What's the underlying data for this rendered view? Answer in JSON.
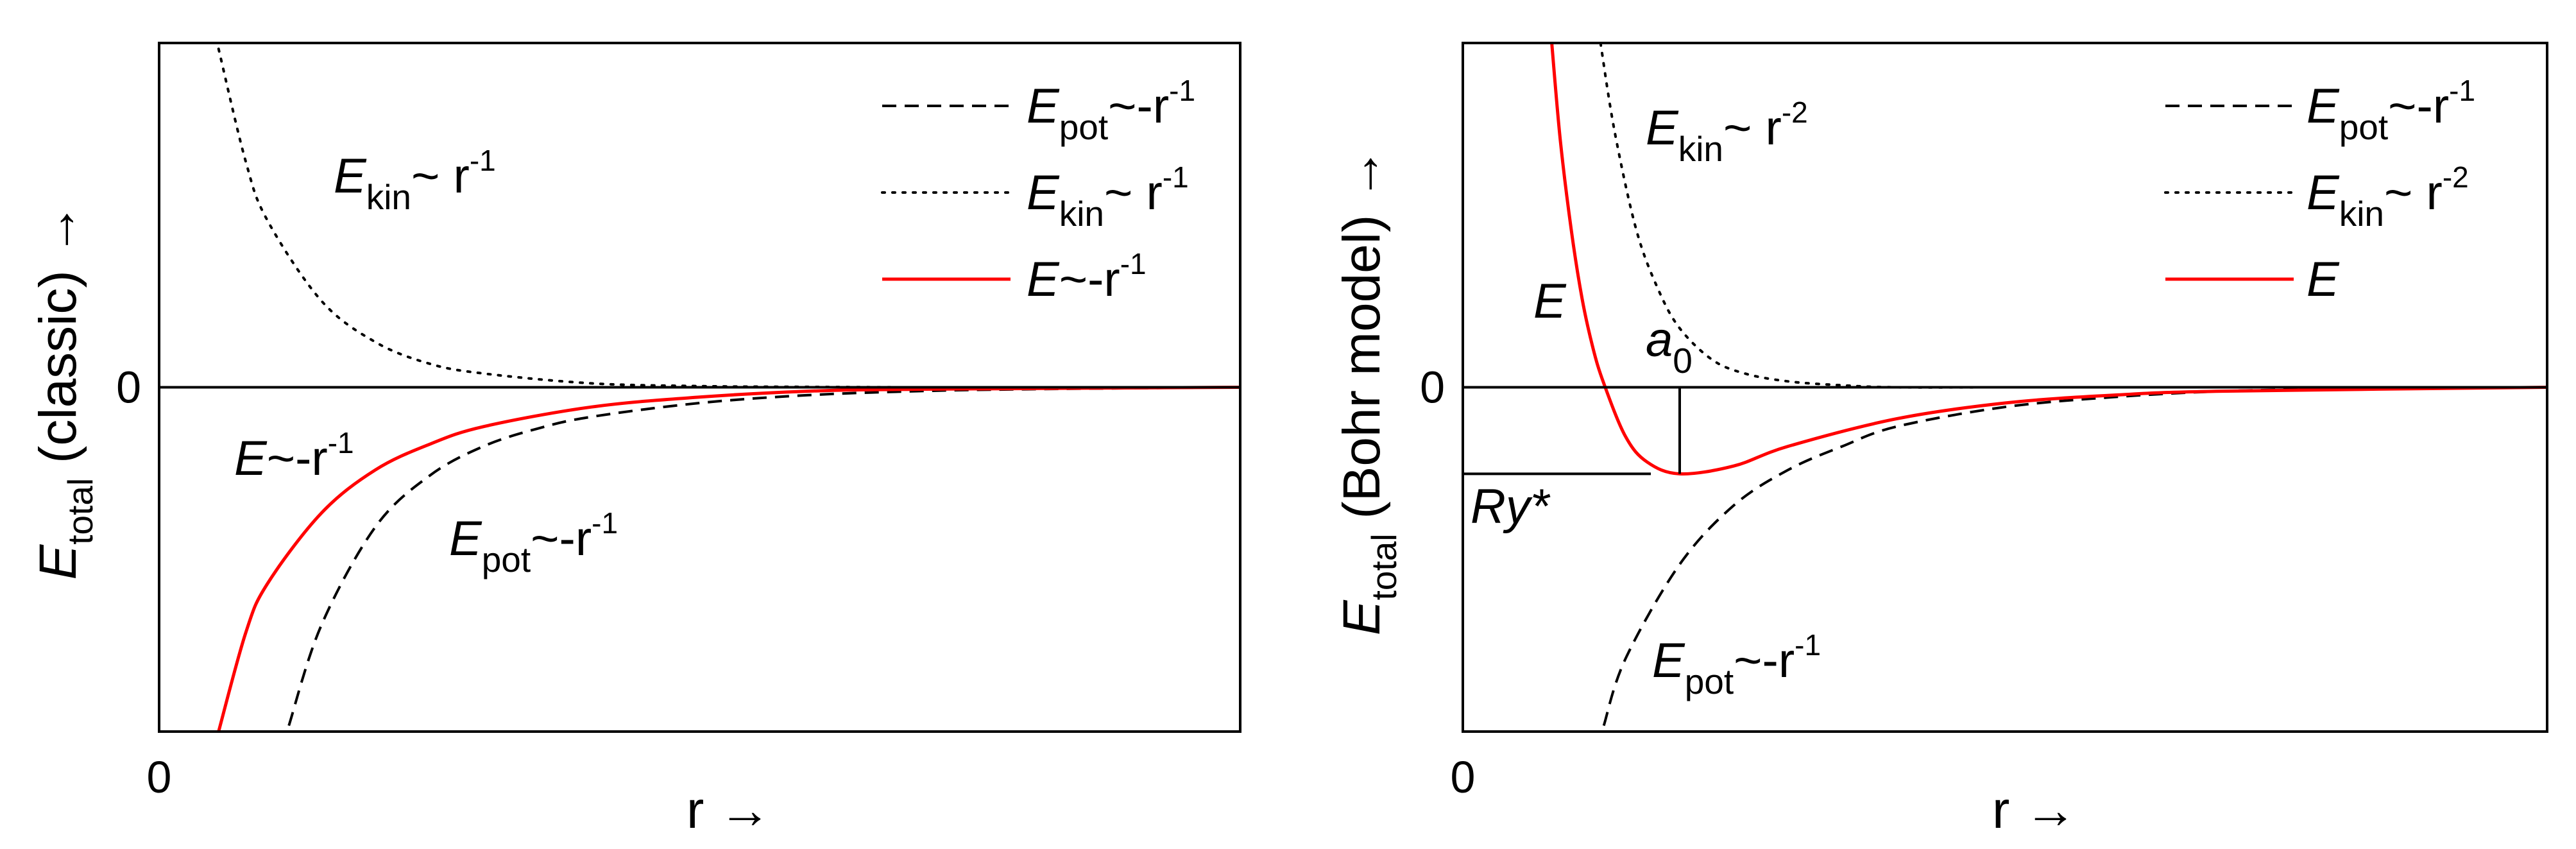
{
  "chart_data": [
    {
      "type": "line",
      "panel": "left",
      "xlabel": "r →",
      "ylabel": {
        "main": "E",
        "sub": "total",
        "rest": " (classic)  →"
      },
      "xticks": [
        "0"
      ],
      "yticks": [
        "0"
      ],
      "xlim": [
        0,
        10
      ],
      "ylim": [
        -1.75,
        1.75
      ],
      "grid": false,
      "legend_placement": "top-right",
      "legend": [
        {
          "base": "E",
          "sub": "pot",
          "mid": "~-r",
          "sup": "-1",
          "style": "dashed",
          "color": "#000000"
        },
        {
          "base": "E",
          "sub": "kin",
          "mid": "~ r",
          "sup": "-1",
          "style": "dotted",
          "color": "#000000"
        },
        {
          "base": "E",
          "sub": "",
          "mid": "~-r",
          "sup": "-1",
          "style": "solid",
          "color": "#ff0000"
        }
      ],
      "annotations": [
        {
          "base": "E",
          "sub": "kin",
          "mid": "~ r",
          "sup": "-1"
        },
        {
          "base": "E",
          "sub": "",
          "mid": "~-r",
          "sup": "-1"
        },
        {
          "base": "E",
          "sub": "pot",
          "mid": "~-r",
          "sup": "-1"
        }
      ],
      "series": [
        {
          "id": "Epot",
          "style": "dashed",
          "color": "#000000",
          "x": [
            1.2,
            1.5,
            2.0,
            2.5,
            3.0,
            3.5,
            4.0,
            5.0,
            6.0,
            7.0,
            8.0,
            10.0
          ],
          "y": [
            -1.72,
            -1.21,
            -0.71,
            -0.45,
            -0.3,
            -0.21,
            -0.15,
            -0.08,
            -0.04,
            -0.02,
            -0.01,
            0.0
          ]
        },
        {
          "id": "Ekin",
          "style": "dotted",
          "color": "#000000",
          "x": [
            0.55,
            0.8,
            1.0,
            1.5,
            2.0,
            2.5,
            3.0,
            4.0,
            5.0,
            6.0,
            7.0,
            8.0
          ],
          "y": [
            1.72,
            1.15,
            0.85,
            0.44,
            0.23,
            0.12,
            0.07,
            0.02,
            0.006,
            0.002,
            0.0,
            0.0
          ]
        },
        {
          "id": "E",
          "style": "solid",
          "color": "#ff0000",
          "x": [
            0.55,
            0.8,
            1.0,
            1.5,
            2.0,
            2.5,
            3.0,
            4.0,
            5.0,
            6.0,
            7.0,
            10.0
          ],
          "y": [
            -1.75,
            -1.25,
            -1.0,
            -0.64,
            -0.42,
            -0.29,
            -0.2,
            -0.1,
            -0.05,
            -0.02,
            -0.01,
            0.0
          ]
        },
        {
          "id": "zero",
          "style": "solid",
          "color": "#000000",
          "x": [
            0,
            10
          ],
          "y": [
            0,
            0
          ]
        }
      ]
    },
    {
      "type": "line",
      "panel": "right",
      "xlabel": "r →",
      "ylabel": {
        "main": "E",
        "sub": "total",
        "rest": " (Bohr model)  →"
      },
      "xticks": [
        "0"
      ],
      "yticks": [
        "0"
      ],
      "xlim": [
        0,
        10
      ],
      "ylim": [
        -1.75,
        1.75
      ],
      "grid": false,
      "legend_placement": "top-right",
      "legend": [
        {
          "base": "E",
          "sub": "pot",
          "mid": "~-r",
          "sup": "-1",
          "style": "dashed",
          "color": "#000000"
        },
        {
          "base": "E",
          "sub": "kin",
          "mid": "~ r",
          "sup": "-2",
          "style": "dotted",
          "color": "#000000"
        },
        {
          "base": "E",
          "sub": "",
          "mid": "",
          "sup": "",
          "style": "solid",
          "color": "#ff0000"
        }
      ],
      "annotations": [
        {
          "base": "E",
          "sub": "kin",
          "mid": "~ r",
          "sup": "-2"
        },
        {
          "base": "E",
          "sub": "",
          "mid": "",
          "sup": ""
        },
        {
          "base": "a",
          "sub": "0",
          "mid": "",
          "sup": ""
        },
        {
          "base": "Ry*",
          "sub": "",
          "mid": "",
          "sup": ""
        },
        {
          "base": "E",
          "sub": "pot",
          "mid": "~-r",
          "sup": "-1"
        }
      ],
      "markers": {
        "a0_x": 2.0,
        "Ry_y": -0.44
      },
      "series": [
        {
          "id": "Epot",
          "style": "dashed",
          "color": "#000000",
          "x": [
            1.3,
            1.5,
            2.0,
            2.5,
            3.0,
            3.5,
            4.0,
            5.0,
            6.0,
            7.0,
            8.0,
            10.0
          ],
          "y": [
            -1.72,
            -1.38,
            -0.9,
            -0.6,
            -0.42,
            -0.3,
            -0.2,
            -0.1,
            -0.05,
            -0.02,
            -0.01,
            0.0
          ]
        },
        {
          "id": "Ekin",
          "style": "dotted",
          "color": "#000000",
          "x": [
            1.27,
            1.4,
            1.6,
            1.8,
            2.0,
            2.3,
            2.6,
            3.0,
            3.5,
            4.0,
            5.0,
            6.0
          ],
          "y": [
            1.75,
            1.3,
            0.8,
            0.5,
            0.3,
            0.14,
            0.07,
            0.03,
            0.01,
            0.0,
            0.0,
            0.0
          ]
        },
        {
          "id": "E",
          "style": "solid",
          "color": "#ff0000",
          "x": [
            0.82,
            0.9,
            1.0,
            1.1,
            1.2,
            1.3,
            1.5,
            1.7,
            2.0,
            2.5,
            3.0,
            4.0,
            5.0,
            6.0,
            7.0,
            10.0
          ],
          "y": [
            1.75,
            1.25,
            0.8,
            0.45,
            0.2,
            0.02,
            -0.25,
            -0.38,
            -0.44,
            -0.4,
            -0.3,
            -0.16,
            -0.08,
            -0.04,
            -0.02,
            0.0
          ]
        },
        {
          "id": "zero",
          "style": "solid",
          "color": "#000000",
          "x": [
            0,
            10
          ],
          "y": [
            0,
            0
          ]
        }
      ]
    }
  ]
}
